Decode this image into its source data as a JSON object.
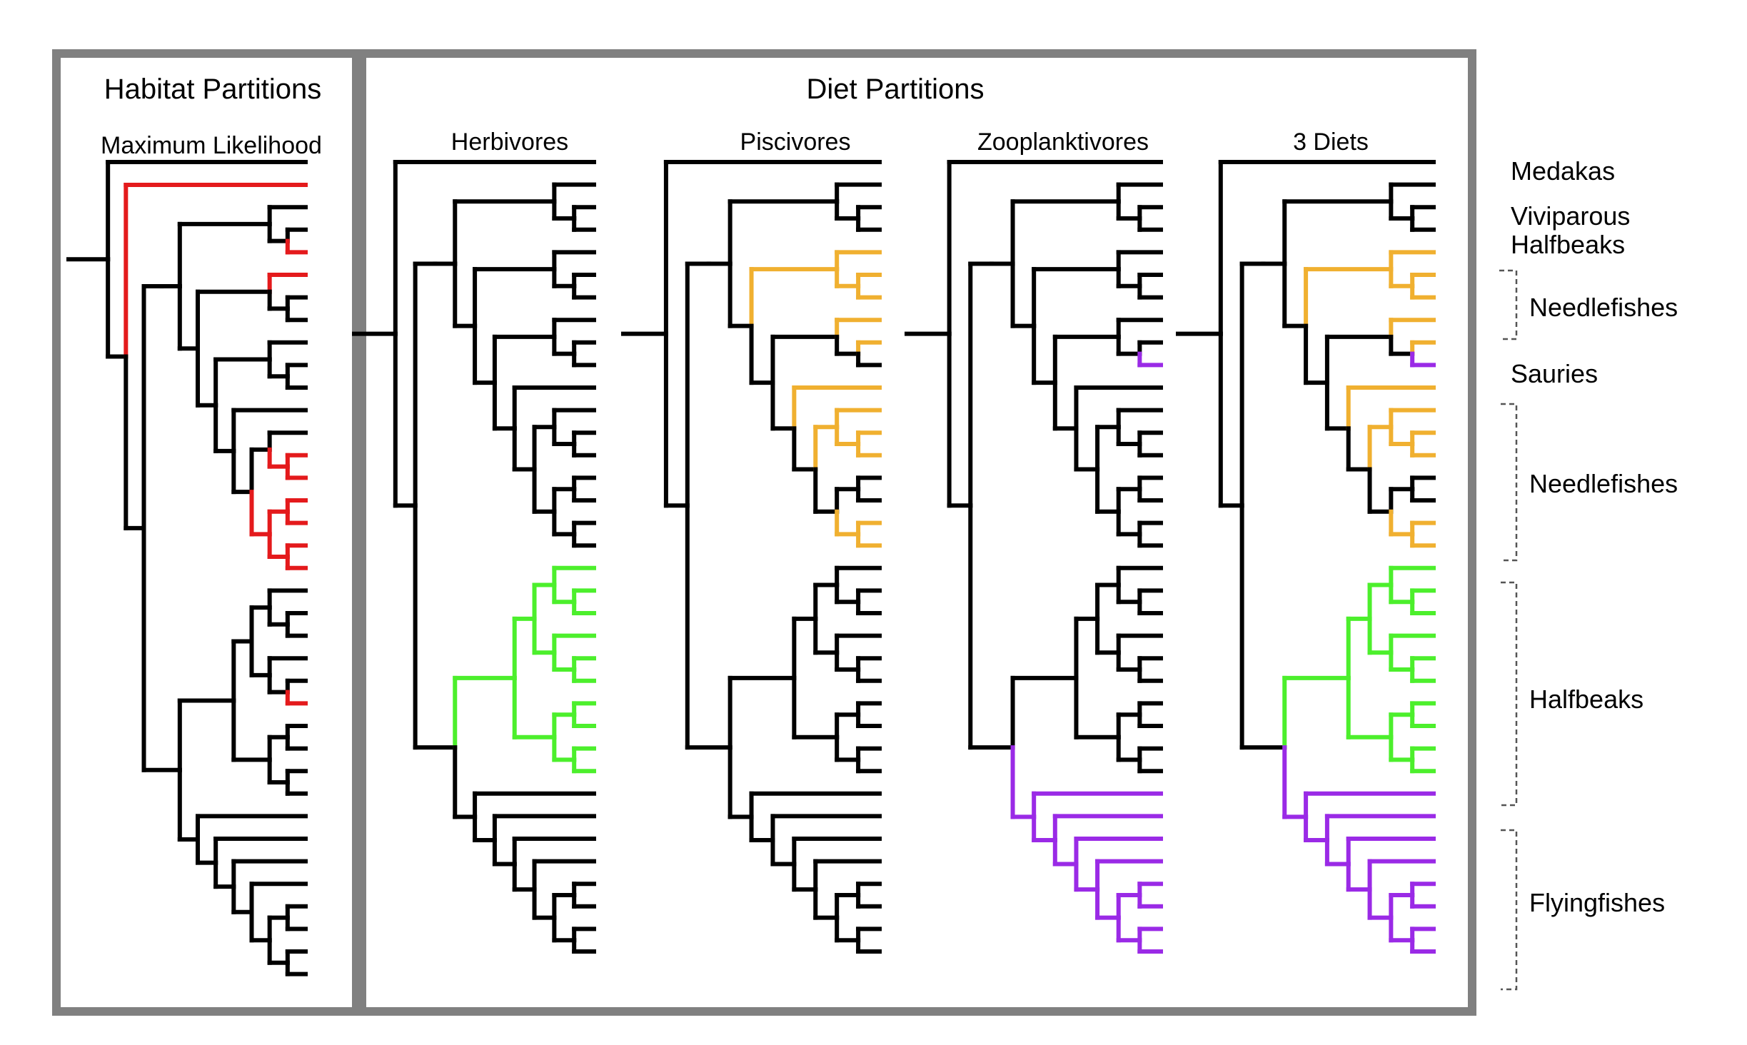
{
  "panels": {
    "habitat": {
      "title": "Habitat Partitions"
    },
    "diet": {
      "title": "Diet Partitions"
    }
  },
  "trees": [
    {
      "id": "ml",
      "title": "Maximum Likelihood"
    },
    {
      "id": "herbivores",
      "title": "Herbivores"
    },
    {
      "id": "piscivores",
      "title": "Piscivores"
    },
    {
      "id": "zooplanktivores",
      "title": "Zooplanktivores"
    },
    {
      "id": "three_diets",
      "title": "3 Diets"
    }
  ],
  "groups": [
    {
      "id": "medakas",
      "lines": [
        "Medakas"
      ],
      "bracket": false
    },
    {
      "id": "viviparous",
      "lines": [
        "Viviparous",
        "Halfbeaks"
      ],
      "bracket": false
    },
    {
      "id": "needlefishes1",
      "lines": [
        "Needlefishes"
      ],
      "bracket": true
    },
    {
      "id": "sauries",
      "lines": [
        "Sauries"
      ],
      "bracket": false
    },
    {
      "id": "needlefishes2",
      "lines": [
        "Needlefishes"
      ],
      "bracket": true
    },
    {
      "id": "halfbeaks",
      "lines": [
        "Halfbeaks"
      ],
      "bracket": true
    },
    {
      "id": "flyingfishes",
      "lines": [
        "Flyingfishes"
      ],
      "bracket": true
    }
  ],
  "colors": {
    "base": "#000000",
    "habitat": "#e41a1c",
    "piscivore": "#f0b030",
    "herbivore": "#4cef2c",
    "zooplanktivore": "#9a2ae6",
    "frame": "#808080"
  }
}
